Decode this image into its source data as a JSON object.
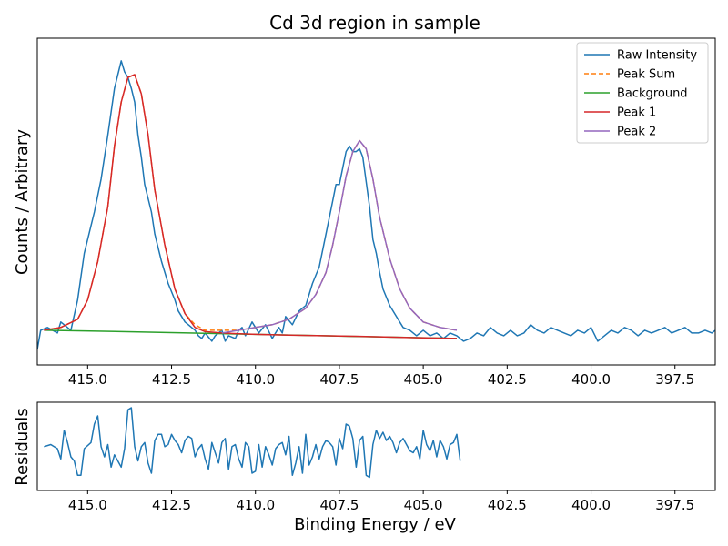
{
  "chart_data": [
    {
      "type": "line",
      "title": "Cd 3d region in sample",
      "xlabel": "",
      "ylabel": "Counts / Arbitrary",
      "xlim": [
        416.5,
        396.3
      ],
      "x_reversed": true,
      "y_ticks_shown": false,
      "grid": false,
      "legend_position": "top-right",
      "x_ticks": [
        415.0,
        412.5,
        410.0,
        407.5,
        405.0,
        402.5,
        400.0,
        397.5
      ],
      "x_tick_labels": [
        "415.0",
        "412.5",
        "410.0",
        "407.5",
        "405.0",
        "402.5",
        "400.0",
        "397.5"
      ],
      "series": [
        {
          "name": "Raw Intensity",
          "color": "#1f77b4",
          "style": "solid",
          "x": [
            416.5,
            416.4,
            416.2,
            415.9,
            415.8,
            415.7,
            415.5,
            415.3,
            415.1,
            414.9,
            414.8,
            414.6,
            414.5,
            414.4,
            414.2,
            414.0,
            413.9,
            413.8,
            413.7,
            413.6,
            413.5,
            413.4,
            413.3,
            413.1,
            413.0,
            412.8,
            412.6,
            412.4,
            412.3,
            412.1,
            412.0,
            411.8,
            411.7,
            411.6,
            411.5,
            411.3,
            411.2,
            411.0,
            410.9,
            410.8,
            410.6,
            410.5,
            410.4,
            410.3,
            410.1,
            409.9,
            409.7,
            409.5,
            409.3,
            409.2,
            409.1,
            408.9,
            408.7,
            408.5,
            408.3,
            408.1,
            407.9,
            407.7,
            407.6,
            407.5,
            407.4,
            407.3,
            407.2,
            407.1,
            407.0,
            406.9,
            406.8,
            406.7,
            406.6,
            406.5,
            406.4,
            406.3,
            406.2,
            406.0,
            405.8,
            405.6,
            405.4,
            405.2,
            405.0,
            404.8,
            404.6,
            404.4,
            404.2,
            404.0,
            403.8,
            403.6,
            403.4,
            403.2,
            403.0,
            402.8,
            402.6,
            402.4,
            402.2,
            402.0,
            401.8,
            401.6,
            401.4,
            401.2,
            401.0,
            400.8,
            400.6,
            400.4,
            400.2,
            400.0,
            399.8,
            399.6,
            399.4,
            399.2,
            399.0,
            398.8,
            398.6,
            398.4,
            398.2,
            398.0,
            397.8,
            397.6,
            397.4,
            397.2,
            397.0,
            396.8,
            396.6,
            396.4,
            396.3
          ],
          "y": [
            0.0,
            0.07,
            0.08,
            0.06,
            0.1,
            0.09,
            0.07,
            0.18,
            0.35,
            0.45,
            0.5,
            0.62,
            0.7,
            0.78,
            0.95,
            1.05,
            1.01,
            0.99,
            0.95,
            0.9,
            0.78,
            0.7,
            0.6,
            0.5,
            0.42,
            0.32,
            0.24,
            0.18,
            0.14,
            0.1,
            0.09,
            0.07,
            0.05,
            0.04,
            0.06,
            0.03,
            0.05,
            0.07,
            0.03,
            0.05,
            0.04,
            0.07,
            0.08,
            0.05,
            0.1,
            0.06,
            0.09,
            0.04,
            0.08,
            0.06,
            0.12,
            0.09,
            0.14,
            0.16,
            0.24,
            0.3,
            0.42,
            0.54,
            0.6,
            0.6,
            0.66,
            0.72,
            0.74,
            0.72,
            0.72,
            0.73,
            0.7,
            0.61,
            0.52,
            0.4,
            0.35,
            0.28,
            0.22,
            0.16,
            0.12,
            0.08,
            0.07,
            0.05,
            0.07,
            0.05,
            0.06,
            0.04,
            0.06,
            0.05,
            0.03,
            0.04,
            0.06,
            0.05,
            0.08,
            0.06,
            0.05,
            0.07,
            0.05,
            0.06,
            0.09,
            0.07,
            0.06,
            0.08,
            0.07,
            0.06,
            0.05,
            0.07,
            0.06,
            0.08,
            0.03,
            0.05,
            0.07,
            0.06,
            0.08,
            0.07,
            0.05,
            0.07,
            0.06,
            0.07,
            0.08,
            0.06,
            0.07,
            0.08,
            0.06,
            0.06,
            0.07,
            0.06,
            0.07
          ]
        },
        {
          "name": "Peak Sum",
          "color": "#ff7f0e",
          "style": "dashed",
          "x": [
            416.3,
            415.8,
            415.3,
            415.0,
            414.7,
            414.4,
            414.2,
            414.0,
            413.8,
            413.6,
            413.4,
            413.2,
            413.0,
            412.7,
            412.4,
            412.1,
            411.8,
            411.5,
            411.0,
            410.5,
            410.0,
            409.5,
            409.0,
            408.5,
            408.2,
            407.9,
            407.7,
            407.5,
            407.3,
            407.1,
            406.9,
            406.7,
            406.5,
            406.3,
            406.0,
            405.7,
            405.4,
            405.0,
            404.5,
            404.0
          ],
          "y": [
            0.07,
            0.08,
            0.11,
            0.18,
            0.32,
            0.52,
            0.74,
            0.9,
            0.99,
            1.0,
            0.93,
            0.78,
            0.58,
            0.38,
            0.22,
            0.13,
            0.09,
            0.07,
            0.07,
            0.07,
            0.08,
            0.09,
            0.11,
            0.15,
            0.2,
            0.28,
            0.38,
            0.5,
            0.63,
            0.72,
            0.76,
            0.73,
            0.62,
            0.48,
            0.33,
            0.22,
            0.15,
            0.1,
            0.08,
            0.07
          ]
        },
        {
          "name": "Background",
          "color": "#2ca02c",
          "style": "solid",
          "x": [
            416.3,
            414.0,
            412.0,
            410.0,
            408.0,
            406.0,
            404.0
          ],
          "y": [
            0.07,
            0.065,
            0.06,
            0.055,
            0.05,
            0.045,
            0.04
          ]
        },
        {
          "name": "Peak 1",
          "color": "#d62728",
          "style": "solid",
          "x": [
            416.3,
            415.8,
            415.3,
            415.0,
            414.7,
            414.4,
            414.2,
            414.0,
            413.8,
            413.6,
            413.4,
            413.2,
            413.0,
            412.7,
            412.4,
            412.1,
            411.8,
            411.5,
            411.0,
            410.0,
            409.0,
            408.0,
            407.0,
            406.0,
            405.0,
            404.0
          ],
          "y": [
            0.07,
            0.08,
            0.11,
            0.18,
            0.32,
            0.52,
            0.74,
            0.9,
            0.99,
            1.0,
            0.93,
            0.78,
            0.58,
            0.38,
            0.22,
            0.13,
            0.08,
            0.065,
            0.06,
            0.055,
            0.052,
            0.05,
            0.048,
            0.045,
            0.042,
            0.04
          ]
        },
        {
          "name": "Peak 2",
          "color": "#9467bd",
          "style": "solid",
          "x": [
            411.0,
            410.5,
            410.0,
            409.5,
            409.0,
            408.5,
            408.2,
            407.9,
            407.7,
            407.5,
            407.3,
            407.1,
            406.9,
            406.7,
            406.5,
            406.3,
            406.0,
            405.7,
            405.4,
            405.0,
            404.5,
            404.0
          ],
          "y": [
            0.06,
            0.07,
            0.08,
            0.09,
            0.11,
            0.15,
            0.2,
            0.28,
            0.38,
            0.5,
            0.63,
            0.72,
            0.76,
            0.73,
            0.62,
            0.48,
            0.33,
            0.22,
            0.15,
            0.1,
            0.08,
            0.07
          ]
        }
      ]
    },
    {
      "type": "line",
      "title": "",
      "xlabel": "Binding Energy / eV",
      "ylabel": "Residuals",
      "xlim": [
        416.5,
        396.3
      ],
      "x_reversed": true,
      "y_ticks_shown": false,
      "grid": false,
      "x_ticks": [
        415.0,
        412.5,
        410.0,
        407.5,
        405.0,
        402.5,
        400.0,
        397.5
      ],
      "x_tick_labels": [
        "415.0",
        "412.5",
        "410.0",
        "407.5",
        "405.0",
        "402.5",
        "400.0",
        "397.5"
      ],
      "ylim": [
        -1,
        1
      ],
      "series": [
        {
          "name": "",
          "color": "#1f77b4",
          "style": "solid",
          "x": [
            416.3,
            416.1,
            415.9,
            415.8,
            415.7,
            415.6,
            415.5,
            415.4,
            415.3,
            415.2,
            415.1,
            414.9,
            414.8,
            414.7,
            414.6,
            414.5,
            414.4,
            414.3,
            414.2,
            414.0,
            413.9,
            413.8,
            413.7,
            413.6,
            413.5,
            413.4,
            413.3,
            413.2,
            413.1,
            413.0,
            412.9,
            412.8,
            412.7,
            412.6,
            412.5,
            412.4,
            412.3,
            412.2,
            412.1,
            412.0,
            411.9,
            411.8,
            411.7,
            411.6,
            411.5,
            411.4,
            411.3,
            411.2,
            411.1,
            411.0,
            410.9,
            410.8,
            410.7,
            410.6,
            410.5,
            410.4,
            410.3,
            410.2,
            410.1,
            410.0,
            409.9,
            409.8,
            409.7,
            409.6,
            409.5,
            409.4,
            409.3,
            409.2,
            409.1,
            409.0,
            408.9,
            408.8,
            408.7,
            408.6,
            408.5,
            408.4,
            408.3,
            408.2,
            408.1,
            408.0,
            407.9,
            407.8,
            407.7,
            407.6,
            407.5,
            407.4,
            407.3,
            407.2,
            407.1,
            407.0,
            406.9,
            406.8,
            406.7,
            406.6,
            406.5,
            406.4,
            406.3,
            406.2,
            406.1,
            406.0,
            405.9,
            405.8,
            405.7,
            405.6,
            405.5,
            405.4,
            405.3,
            405.2,
            405.1,
            405.0,
            404.9,
            404.8,
            404.7,
            404.6,
            404.5,
            404.4,
            404.3,
            404.2,
            404.1,
            404.0,
            403.9
          ],
          "y": [
            0.05,
            0.1,
            0.0,
            -0.25,
            0.45,
            0.15,
            -0.2,
            -0.3,
            -0.65,
            -0.65,
            0.0,
            0.15,
            0.6,
            0.8,
            0.05,
            -0.2,
            0.1,
            -0.45,
            -0.15,
            -0.45,
            0.0,
            0.95,
            1.0,
            0.05,
            -0.3,
            0.05,
            0.15,
            -0.35,
            -0.6,
            0.2,
            0.35,
            0.35,
            0.05,
            0.1,
            0.35,
            0.2,
            0.1,
            -0.1,
            0.2,
            0.3,
            0.25,
            -0.2,
            0.0,
            0.1,
            -0.25,
            -0.5,
            0.15,
            -0.1,
            -0.35,
            0.15,
            0.25,
            -0.5,
            0.05,
            0.1,
            -0.25,
            -0.45,
            0.15,
            0.05,
            -0.6,
            -0.55,
            0.1,
            -0.45,
            0.05,
            -0.15,
            -0.4,
            0.0,
            0.1,
            0.15,
            -0.15,
            0.3,
            -0.65,
            -0.35,
            0.05,
            -0.6,
            0.35,
            -0.4,
            -0.2,
            0.1,
            -0.25,
            0.05,
            0.2,
            0.15,
            0.05,
            -0.4,
            0.25,
            0.0,
            0.6,
            0.55,
            0.25,
            -0.45,
            0.2,
            0.3,
            -0.65,
            -0.7,
            0.1,
            0.45,
            0.25,
            0.4,
            0.2,
            0.3,
            0.15,
            -0.1,
            0.15,
            0.25,
            0.1,
            -0.05,
            -0.1,
            0.05,
            -0.25,
            0.45,
            0.1,
            -0.05,
            0.2,
            -0.2,
            0.2,
            0.05,
            -0.25,
            0.1,
            0.15,
            0.35,
            -0.3
          ]
        }
      ]
    }
  ]
}
